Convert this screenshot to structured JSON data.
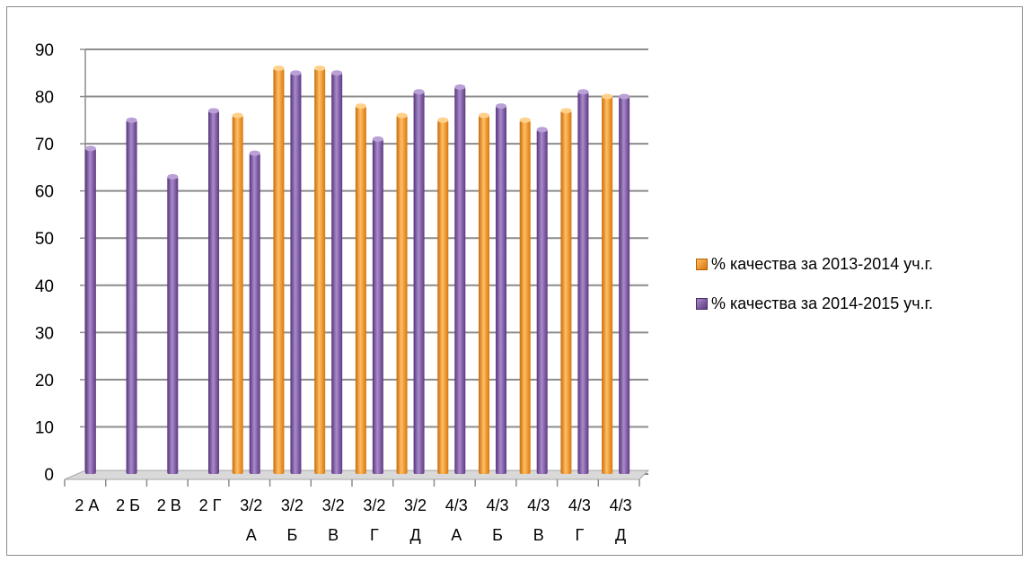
{
  "chart_data": {
    "type": "bar",
    "categories": [
      [
        "2 А"
      ],
      [
        "2 Б"
      ],
      [
        "2 В"
      ],
      [
        "2 Г"
      ],
      [
        "3/2",
        "А"
      ],
      [
        "3/2",
        "Б"
      ],
      [
        "3/2",
        "В"
      ],
      [
        "3/2",
        "Г"
      ],
      [
        "3/2",
        "Д"
      ],
      [
        "4/3",
        "А"
      ],
      [
        "4/3",
        "Б"
      ],
      [
        "4/3",
        "В"
      ],
      [
        "4/3",
        "Г"
      ],
      [
        "4/3",
        "Д"
      ]
    ],
    "series": [
      {
        "name": "% качества за  2013-2014 уч.г.",
        "color": "#f0931e",
        "values": [
          null,
          null,
          null,
          null,
          76,
          86,
          86,
          78,
          76,
          75,
          76,
          75,
          77,
          80
        ]
      },
      {
        "name": "% качества за  2014-2015 уч.г.",
        "color": "#7b4fa0",
        "values": [
          69,
          75,
          63,
          77,
          68,
          85,
          85,
          71,
          81,
          82,
          78,
          73,
          81,
          80
        ]
      }
    ],
    "y_ticks": [
      "0",
      "10",
      "20",
      "30",
      "40",
      "50",
      "60",
      "70",
      "80",
      "90"
    ],
    "ylim": [
      0,
      90
    ],
    "grid": true,
    "legend_position": "right"
  }
}
